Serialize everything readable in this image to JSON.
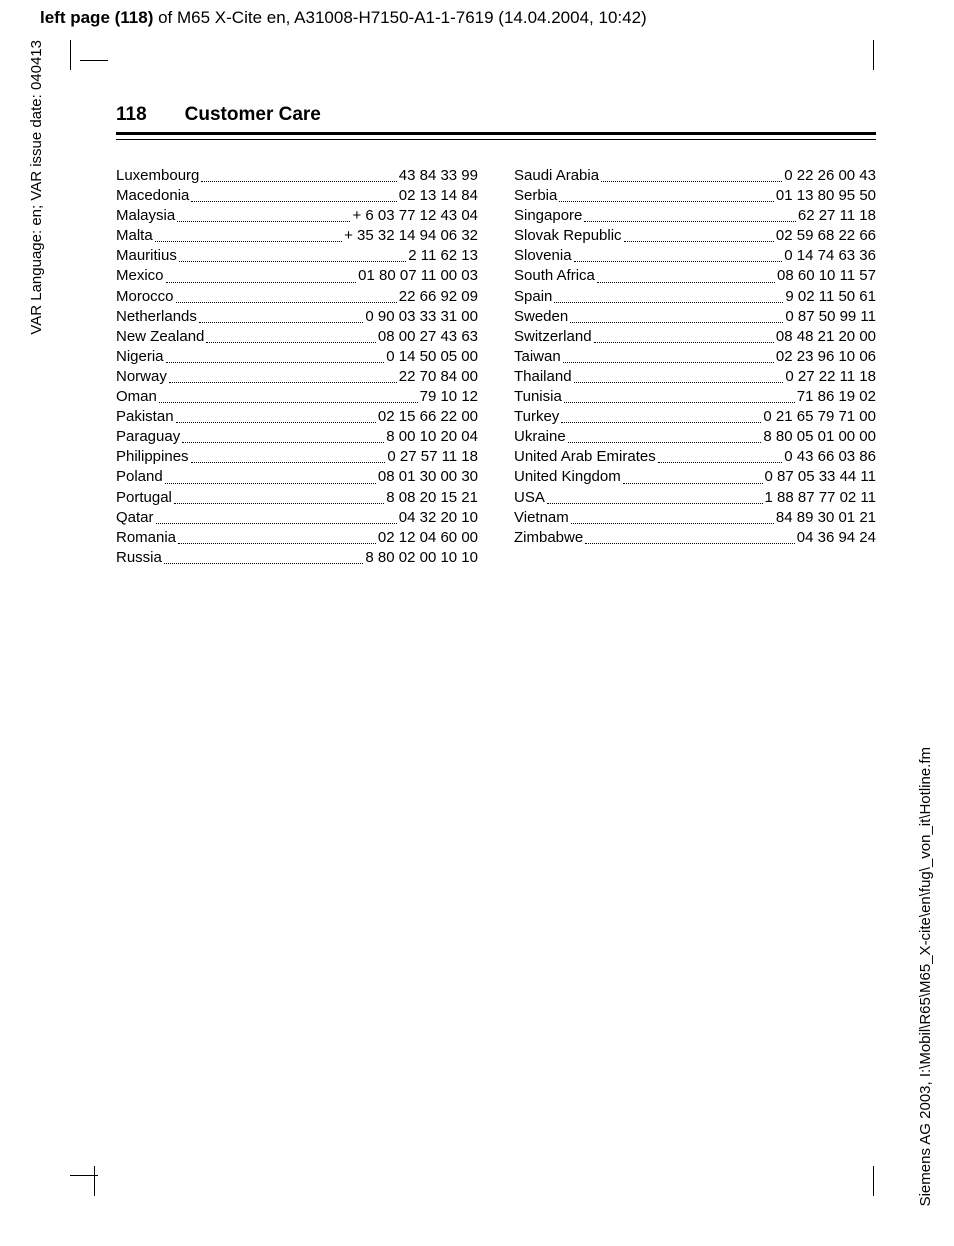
{
  "header": {
    "prefix_bold": "left page (118)",
    "rest": " of M65 X-Cite en, A31008-H7150-A1-1-7619 (14.04.2004, 10:42)"
  },
  "vtext_left": "VAR Language: en; VAR issue date: 040413",
  "vtext_right": "Siemens AG 2003, I:\\Mobil\\R65\\M65_X-cite\\en\\fug\\_von_it\\Hotline.fm",
  "page_number": "118",
  "section_title": "Customer Care",
  "entries": [
    {
      "country": "Luxembourg",
      "phone": "43 84 33 99"
    },
    {
      "country": "Macedonia",
      "phone": "02 13 14 84"
    },
    {
      "country": "Malaysia",
      "phone": "+ 6 03 77 12 43 04"
    },
    {
      "country": "Malta",
      "phone": "+ 35 32 14 94 06 32"
    },
    {
      "country": "Mauritius",
      "phone": "2 11 62 13"
    },
    {
      "country": "Mexico",
      "phone": "01 80 07 11 00 03"
    },
    {
      "country": "Morocco",
      "phone": "22 66 92 09"
    },
    {
      "country": "Netherlands",
      "phone": "0 90 03 33 31 00"
    },
    {
      "country": "New Zealand",
      "phone": "08 00 27 43 63"
    },
    {
      "country": "Nigeria",
      "phone": "0 14 50 05 00"
    },
    {
      "country": "Norway",
      "phone": "22 70 84 00"
    },
    {
      "country": "Oman",
      "phone": "79 10 12"
    },
    {
      "country": "Pakistan",
      "phone": "02 15 66 22 00"
    },
    {
      "country": "Paraguay",
      "phone": "8 00 10 20 04"
    },
    {
      "country": "Philippines",
      "phone": "0 27 57 11 18"
    },
    {
      "country": "Poland",
      "phone": "08 01 30 00 30"
    },
    {
      "country": "Portugal",
      "phone": "8 08 20 15 21"
    },
    {
      "country": "Qatar",
      "phone": "04 32 20 10"
    },
    {
      "country": "Romania",
      "phone": "02 12 04 60 00"
    },
    {
      "country": "Russia",
      "phone": "8 80 02 00 10 10"
    },
    {
      "country": "Saudi Arabia",
      "phone": "0 22 26 00 43"
    },
    {
      "country": "Serbia",
      "phone": "01 13 80 95 50"
    },
    {
      "country": "Singapore",
      "phone": "62 27 11 18"
    },
    {
      "country": "Slovak Republic",
      "phone": "02 59 68 22 66"
    },
    {
      "country": "Slovenia",
      "phone": "0 14 74 63 36"
    },
    {
      "country": "South Africa",
      "phone": "08 60 10 11 57"
    },
    {
      "country": "Spain",
      "phone": "9 02 11 50 61"
    },
    {
      "country": "Sweden",
      "phone": "0 87 50 99 11"
    },
    {
      "country": "Switzerland",
      "phone": "08 48 21 20 00"
    },
    {
      "country": "Taiwan",
      "phone": "02 23 96 10 06"
    },
    {
      "country": "Thailand",
      "phone": "0 27 22 11 18"
    },
    {
      "country": "Tunisia",
      "phone": "71 86 19 02"
    },
    {
      "country": "Turkey",
      "phone": "0 21 65 79 71 00"
    },
    {
      "country": "Ukraine",
      "phone": "8 80 05 01 00 00"
    },
    {
      "country": "United Arab Emirates",
      "phone": "0 43 66 03 86"
    },
    {
      "country": "United Kingdom",
      "phone": "0 87 05 33 44 11"
    },
    {
      "country": "USA",
      "phone": "1 88 87 77 02 11"
    },
    {
      "country": "Vietnam",
      "phone": "84 89 30 01 21"
    },
    {
      "country": "Zimbabwe",
      "phone": "04 36 94 24"
    }
  ]
}
